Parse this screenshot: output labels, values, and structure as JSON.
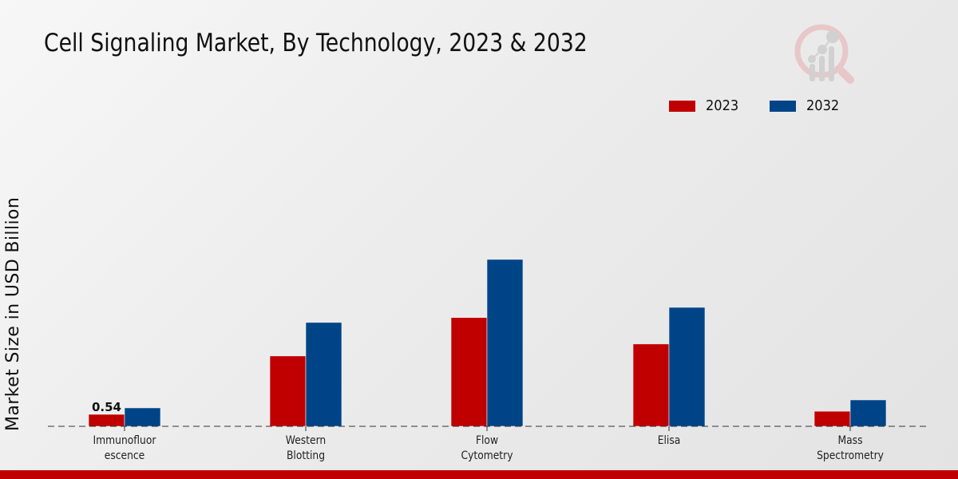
{
  "chart_data": {
    "type": "bar",
    "title": "Cell Signaling Market, By Technology, 2023 & 2032",
    "xlabel": "",
    "ylabel": "Market Size in USD Billion",
    "categories": [
      [
        "Immunofluor",
        "escence"
      ],
      [
        "Western",
        "Blotting"
      ],
      [
        "Flow",
        "Cytometry"
      ],
      [
        "Elisa"
      ],
      [
        "Mass",
        "Spectrometry"
      ]
    ],
    "category_names": [
      "Immunofluorescence",
      "Western Blotting",
      "Flow Cytometry",
      "Elisa",
      "Mass Spectrometry"
    ],
    "series": [
      {
        "name": "2023",
        "color": "#c00000",
        "values": [
          0.54,
          3.17,
          4.9,
          3.71,
          0.68
        ]
      },
      {
        "name": "2032",
        "color": "#004488",
        "values": [
          0.83,
          4.68,
          7.52,
          5.36,
          1.19
        ]
      }
    ],
    "data_labels": [
      {
        "series": 0,
        "index": 0,
        "text": "0.54"
      }
    ],
    "ylim": [
      0,
      9
    ],
    "grid": false,
    "legend_position": "top-right",
    "baseline_style": "dashed"
  },
  "legend": [
    {
      "label": "2023",
      "color": "#c00000"
    },
    {
      "label": "2032",
      "color": "#004488"
    }
  ],
  "branding": {
    "logo_icon": "magnifier-bar-chart-icon",
    "footer_color": "#c00000"
  }
}
